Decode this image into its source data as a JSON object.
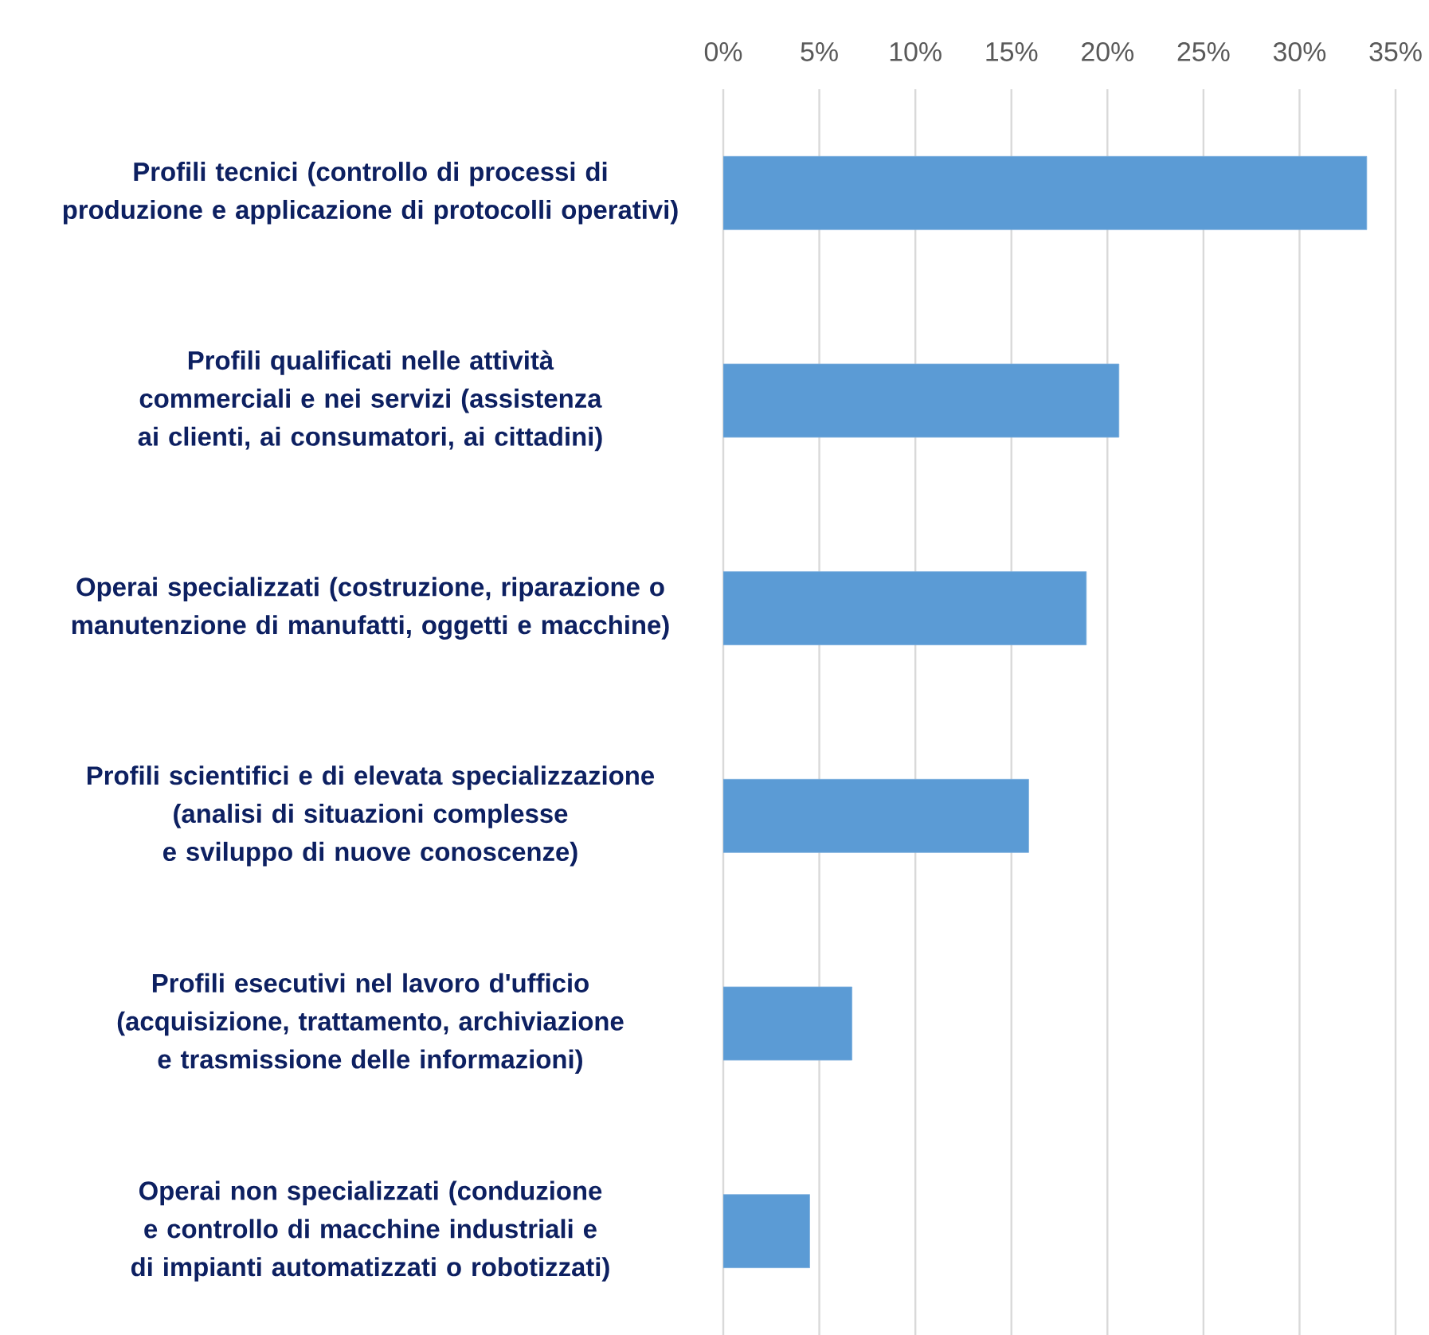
{
  "chart_data": {
    "type": "bar",
    "orientation": "horizontal",
    "categories": [
      "Profili tecnici (controllo di processi di produzione e applicazione di protocolli operativi)",
      "Profili qualificati nelle attività commerciali e nei servizi (assistenza ai clienti, ai consumatori, ai cittadini)",
      "Operai specializzati (costruzione, riparazione o manutenzione di manufatti, oggetti e macchine)",
      "Profili scientifici e di elevata specializzazione (analisi di situazioni complesse e sviluppo di nuove conoscenze)",
      "Profili esecutivi nel lavoro d'ufficio (acquisizione, trattamento, archiviazione e trasmissione delle informazioni)",
      "Operai non specializzati (conduzione e controllo di macchine industriali e di impianti automatizzati o robotizzati)"
    ],
    "values": [
      33.5,
      20.6,
      18.9,
      15.9,
      6.7,
      4.5
    ],
    "color": "#5b9bd5",
    "xlim": [
      0,
      35
    ],
    "xticks": [
      {
        "value": 0,
        "label": "0%"
      },
      {
        "value": 5,
        "label": "5%"
      },
      {
        "value": 10,
        "label": "10%"
      },
      {
        "value": 15,
        "label": "15%"
      },
      {
        "value": 20,
        "label": "20%"
      },
      {
        "value": 25,
        "label": "25%"
      },
      {
        "value": 30,
        "label": "30%"
      },
      {
        "value": 35,
        "label": "35%"
      }
    ],
    "grid": "x"
  }
}
